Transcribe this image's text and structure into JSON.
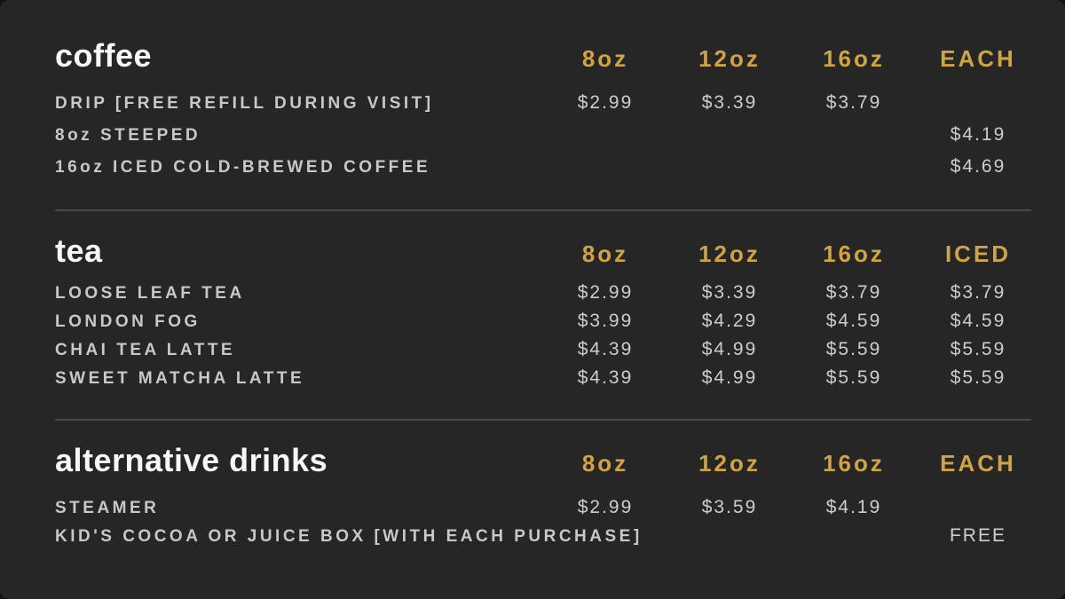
{
  "theme": {
    "background": "#262626",
    "accent_gold": "#D0A343",
    "title_color": "#F7F7F7",
    "item_color": "#C8C8C8",
    "price_color": "#CDCDCD",
    "divider_color": "#494949"
  },
  "sections": [
    {
      "title": "coffee",
      "columns": [
        "8oz",
        "12oz",
        "16oz",
        "EACH"
      ],
      "items": [
        {
          "name": "DRIP [FREE REFILL DURING VISIT]",
          "prices": [
            "$2.99",
            "$3.39",
            "$3.79",
            ""
          ]
        },
        {
          "name": "8oz STEEPED",
          "prices": [
            "",
            "",
            "",
            "$4.19"
          ]
        },
        {
          "name": "16oz ICED COLD-BREWED COFFEE",
          "prices": [
            "",
            "",
            "",
            "$4.69"
          ]
        }
      ]
    },
    {
      "title": "tea",
      "columns": [
        "8oz",
        "12oz",
        "16oz",
        "ICED"
      ],
      "items": [
        {
          "name": "LOOSE LEAF TEA",
          "prices": [
            "$2.99",
            "$3.39",
            "$3.79",
            "$3.79"
          ]
        },
        {
          "name": "LONDON FOG",
          "prices": [
            "$3.99",
            "$4.29",
            "$4.59",
            "$4.59"
          ]
        },
        {
          "name": "CHAI TEA LATTE",
          "prices": [
            "$4.39",
            "$4.99",
            "$5.59",
            "$5.59"
          ]
        },
        {
          "name": "SWEET MATCHA LATTE",
          "prices": [
            "$4.39",
            "$4.99",
            "$5.59",
            "$5.59"
          ]
        }
      ]
    },
    {
      "title": "alternative drinks",
      "columns": [
        "8oz",
        "12oz",
        "16oz",
        "EACH"
      ],
      "items": [
        {
          "name": "STEAMER",
          "prices": [
            "$2.99",
            "$3.59",
            "$4.19",
            ""
          ]
        },
        {
          "name": "KID'S COCOA OR JUICE BOX [WITH EACH PURCHASE]",
          "prices": [
            "",
            "",
            "",
            "FREE"
          ]
        }
      ]
    }
  ]
}
